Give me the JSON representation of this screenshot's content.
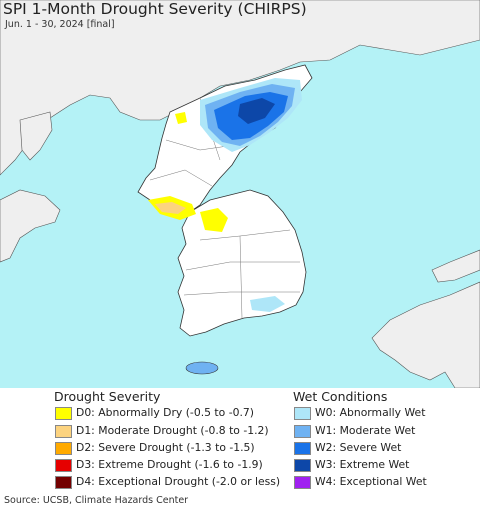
{
  "title": "SPI 1-Month Drought Severity (CHIRPS)",
  "subtitle": "Jun. 1 - 30, 2024 [final]",
  "colors": {
    "sea": "#b4f2f6",
    "land": "#ffffff",
    "neighbor_land": "#efefef",
    "border": "#333333"
  },
  "legend": {
    "drought": {
      "title": "Drought Severity",
      "items": [
        {
          "label": "D0: Abnormally Dry (-0.5 to -0.7)",
          "color": "#ffff00"
        },
        {
          "label": "D1: Moderate Drought (-0.8 to -1.2)",
          "color": "#fcd37f"
        },
        {
          "label": "D2: Severe Drought (-1.3 to -1.5)",
          "color": "#ffaa00"
        },
        {
          "label": "D3: Extreme Drought (-1.6 to -1.9)",
          "color": "#e60000"
        },
        {
          "label": "D4: Exceptional Drought (-2.0 or less)",
          "color": "#730000"
        }
      ]
    },
    "wet": {
      "title": "Wet Conditions",
      "items": [
        {
          "label": "W0: Abnormally Wet",
          "color": "#aee6f8"
        },
        {
          "label": "W1: Moderate Wet",
          "color": "#6fb2f2"
        },
        {
          "label": "W2: Severe Wet",
          "color": "#1a73e8"
        },
        {
          "label": "W3: Extreme Wet",
          "color": "#0d47a8"
        },
        {
          "label": "W4: Exceptional Wet",
          "color": "#a020f0"
        }
      ]
    }
  },
  "source": "Source: UCSB, Climate Hazards Center"
}
